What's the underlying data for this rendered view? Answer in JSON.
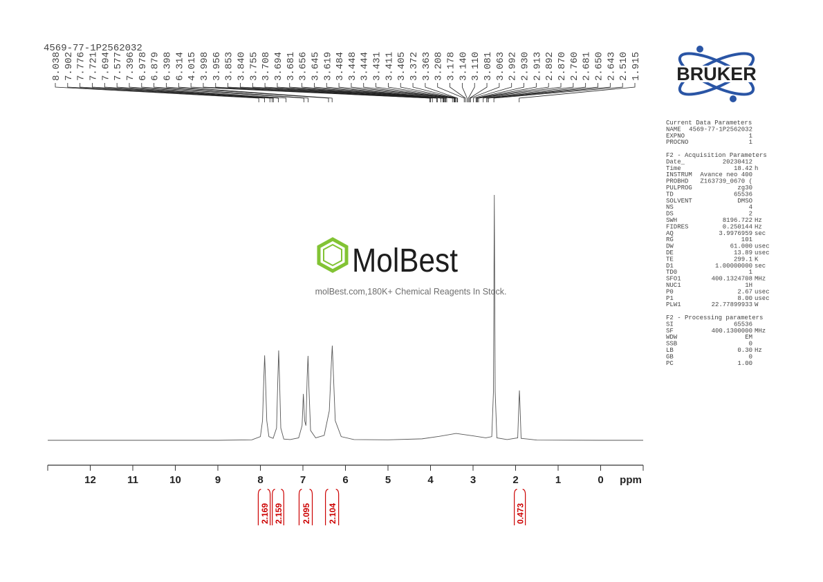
{
  "chart_data": {
    "type": "line",
    "title": "4569-77-1P2562032",
    "xlabel": "ppm",
    "xlim": [
      13,
      -1
    ],
    "ylim": [
      -5,
      105
    ],
    "xticks": [
      12,
      11,
      10,
      9,
      8,
      7,
      6,
      5,
      4,
      3,
      2,
      1,
      0
    ],
    "color": "#555555",
    "x": [
      13,
      9,
      8.2,
      8.0,
      7.95,
      7.92,
      7.9,
      7.88,
      7.85,
      7.8,
      7.7,
      7.62,
      7.59,
      7.57,
      7.55,
      7.52,
      7.45,
      7.3,
      7.1,
      7.02,
      6.99,
      6.96,
      6.93,
      6.9,
      6.88,
      6.86,
      6.82,
      6.7,
      6.5,
      6.38,
      6.33,
      6.31,
      6.29,
      6.24,
      6.1,
      5.8,
      5,
      4.2,
      3.8,
      3.4,
      3.0,
      2.7,
      2.56,
      2.52,
      2.5,
      2.48,
      2.44,
      2.2,
      1.95,
      1.92,
      1.91,
      1.9,
      1.87,
      1.5,
      0,
      -1
    ],
    "values": [
      0,
      0,
      0.2,
      1.5,
      8,
      25,
      34.6,
      25,
      8,
      1.5,
      0.8,
      5,
      25,
      36.6,
      25,
      5,
      0.5,
      0.3,
      1,
      6,
      18.9,
      8,
      6,
      26,
      34.4,
      22,
      4,
      1,
      2,
      12,
      32,
      38.6,
      30,
      8,
      1.5,
      0.3,
      0.2,
      0.6,
      1.6,
      2.8,
      1.8,
      1,
      1.5,
      20,
      100,
      20,
      1,
      0.3,
      1,
      16,
      20.3,
      16,
      0.8,
      0.1,
      0,
      0
    ],
    "peak_labels": [
      8.038,
      7.902,
      7.776,
      7.721,
      7.694,
      7.577,
      7.396,
      6.978,
      6.879,
      6.398,
      6.314,
      4.015,
      3.998,
      3.956,
      3.853,
      {
        "value": 3.84,
        "label": "3.840"
      },
      3.755,
      3.708,
      3.694,
      3.681,
      3.656,
      3.645,
      3.619,
      3.484,
      3.448,
      3.444,
      3.431,
      3.411,
      3.405,
      3.372,
      3.363,
      3.208,
      3.178,
      {
        "value": 3.14,
        "label": "3.140"
      },
      {
        "value": 3.11,
        "label": "3.110"
      },
      3.081,
      3.063,
      2.992,
      {
        "value": 2.93,
        "label": "2.930"
      },
      2.913,
      2.892,
      {
        "value": 2.87,
        "label": "2.870"
      },
      {
        "value": 2.76,
        "label": "2.760"
      },
      2.681,
      {
        "value": 2.65,
        "label": "2.650"
      },
      2.643,
      {
        "value": 2.51,
        "label": "2.510"
      },
      1.915
    ],
    "integral_color": "#cc0000",
    "integrals": [
      {
        "range": [
          8.05,
          7.77
        ],
        "value": 2.169
      },
      {
        "range": [
          7.72,
          7.45
        ],
        "value": 2.159
      },
      {
        "range": [
          7.09,
          6.78
        ],
        "value": 2.095
      },
      {
        "range": [
          6.47,
          6.16
        ],
        "value": 2.104
      },
      {
        "range": [
          2.03,
          1.77
        ],
        "value": 0.473
      }
    ]
  },
  "logo": "BRUKER",
  "watermark": {
    "name": "MolBest",
    "tagline": "molBest.com,180K+ Chemical Reagents In Stock."
  },
  "parameters": [
    {
      "title": "Current Data Parameters",
      "rows": [
        [
          "NAME",
          "4569-77-1P2562032"
        ],
        [
          "EXPNO",
          "1"
        ],
        [
          "PROCNO",
          "1"
        ]
      ]
    },
    {
      "title": "F2 - Acquisition Parameters",
      "rows": [
        [
          "Date_",
          "20230412"
        ],
        [
          "Time",
          "18.42",
          "h"
        ],
        [
          "INSTRUM",
          "Avance neo 400"
        ],
        [
          "PROBHD",
          "Z163739_0670 ("
        ],
        [
          "PULPROG",
          "zg30"
        ],
        [
          "TD",
          "65536"
        ],
        [
          "SOLVENT",
          "DMSO"
        ],
        [
          "NS",
          "4"
        ],
        [
          "DS",
          "2"
        ],
        [
          "SWH",
          "8196.722",
          "Hz"
        ],
        [
          "FIDRES",
          "0.250144",
          "Hz"
        ],
        [
          "AQ",
          "3.9976959",
          "sec"
        ],
        [
          "RG",
          "101"
        ],
        [
          "DW",
          "61.000",
          "usec"
        ],
        [
          "DE",
          "13.89",
          "usec"
        ],
        [
          "TE",
          "299.1",
          "K"
        ],
        [
          "D1",
          "1.00000000",
          "sec"
        ],
        [
          "TD0",
          "1"
        ],
        [
          "SFO1",
          "400.1324708",
          "MHz"
        ],
        [
          "NUC1",
          "1H"
        ],
        [
          "P0",
          "2.67",
          "usec"
        ],
        [
          "P1",
          "8.00",
          "usec"
        ],
        [
          "PLW1",
          "22.77899933",
          "W"
        ]
      ]
    },
    {
      "title": "F2 - Processing parameters",
      "rows": [
        [
          "SI",
          "65536"
        ],
        [
          "SF",
          "400.1300000",
          "MHz"
        ],
        [
          "WDW",
          "EM"
        ],
        [
          "SSB",
          "0"
        ],
        [
          "LB",
          "0.30",
          "Hz"
        ],
        [
          "GB",
          "0"
        ],
        [
          "PC",
          "1.00"
        ]
      ]
    }
  ]
}
